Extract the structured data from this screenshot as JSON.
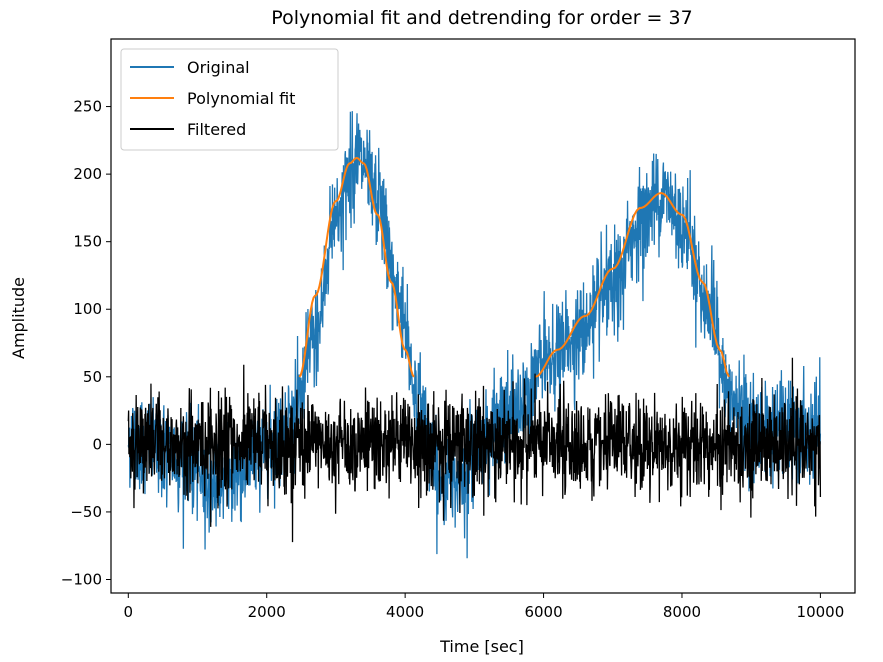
{
  "chart_data": {
    "type": "line",
    "title": "Polynomial fit and detrending for order = 37",
    "xlabel": "Time [sec]",
    "ylabel": "Amplitude",
    "xlim": [
      -250,
      10500
    ],
    "ylim": [
      -110,
      300
    ],
    "xticks": [
      0,
      2000,
      4000,
      6000,
      8000,
      10000
    ],
    "yticks": [
      -100,
      -50,
      0,
      50,
      100,
      150,
      200,
      250
    ],
    "grid": false,
    "legend_position": "top-left",
    "series": [
      {
        "name": "Original",
        "color": "#1f77b4",
        "description_noise_amplitude": 25,
        "trend": [
          [
            0,
            5
          ],
          [
            500,
            -5
          ],
          [
            1000,
            -20
          ],
          [
            1200,
            -30
          ],
          [
            1600,
            -20
          ],
          [
            2000,
            0
          ],
          [
            2400,
            20
          ],
          [
            2700,
            80
          ],
          [
            3000,
            170
          ],
          [
            3300,
            212
          ],
          [
            3600,
            180
          ],
          [
            3900,
            110
          ],
          [
            4200,
            30
          ],
          [
            4500,
            -30
          ],
          [
            4800,
            -20
          ],
          [
            5200,
            5
          ],
          [
            5600,
            25
          ],
          [
            6000,
            60
          ],
          [
            6500,
            80
          ],
          [
            7000,
            115
          ],
          [
            7400,
            165
          ],
          [
            7700,
            186
          ],
          [
            8000,
            165
          ],
          [
            8400,
            100
          ],
          [
            8700,
            30
          ],
          [
            9000,
            15
          ],
          [
            9500,
            10
          ],
          [
            10000,
            5
          ]
        ]
      },
      {
        "name": "Polynomial fit",
        "color": "#ff7f0e",
        "points": [
          [
            2470,
            50
          ],
          [
            2700,
            110
          ],
          [
            3000,
            180
          ],
          [
            3200,
            208
          ],
          [
            3300,
            212
          ],
          [
            3400,
            208
          ],
          [
            3600,
            170
          ],
          [
            3800,
            120
          ],
          [
            4000,
            70
          ],
          [
            4130,
            50
          ]
        ],
        "points2": [
          [
            5880,
            50
          ],
          [
            6200,
            70
          ],
          [
            6600,
            95
          ],
          [
            7000,
            130
          ],
          [
            7400,
            175
          ],
          [
            7700,
            186
          ],
          [
            8000,
            170
          ],
          [
            8300,
            120
          ],
          [
            8550,
            70
          ],
          [
            8680,
            50
          ]
        ]
      },
      {
        "name": "Filtered",
        "color": "#000000",
        "noise_amplitude": 25
      }
    ]
  }
}
